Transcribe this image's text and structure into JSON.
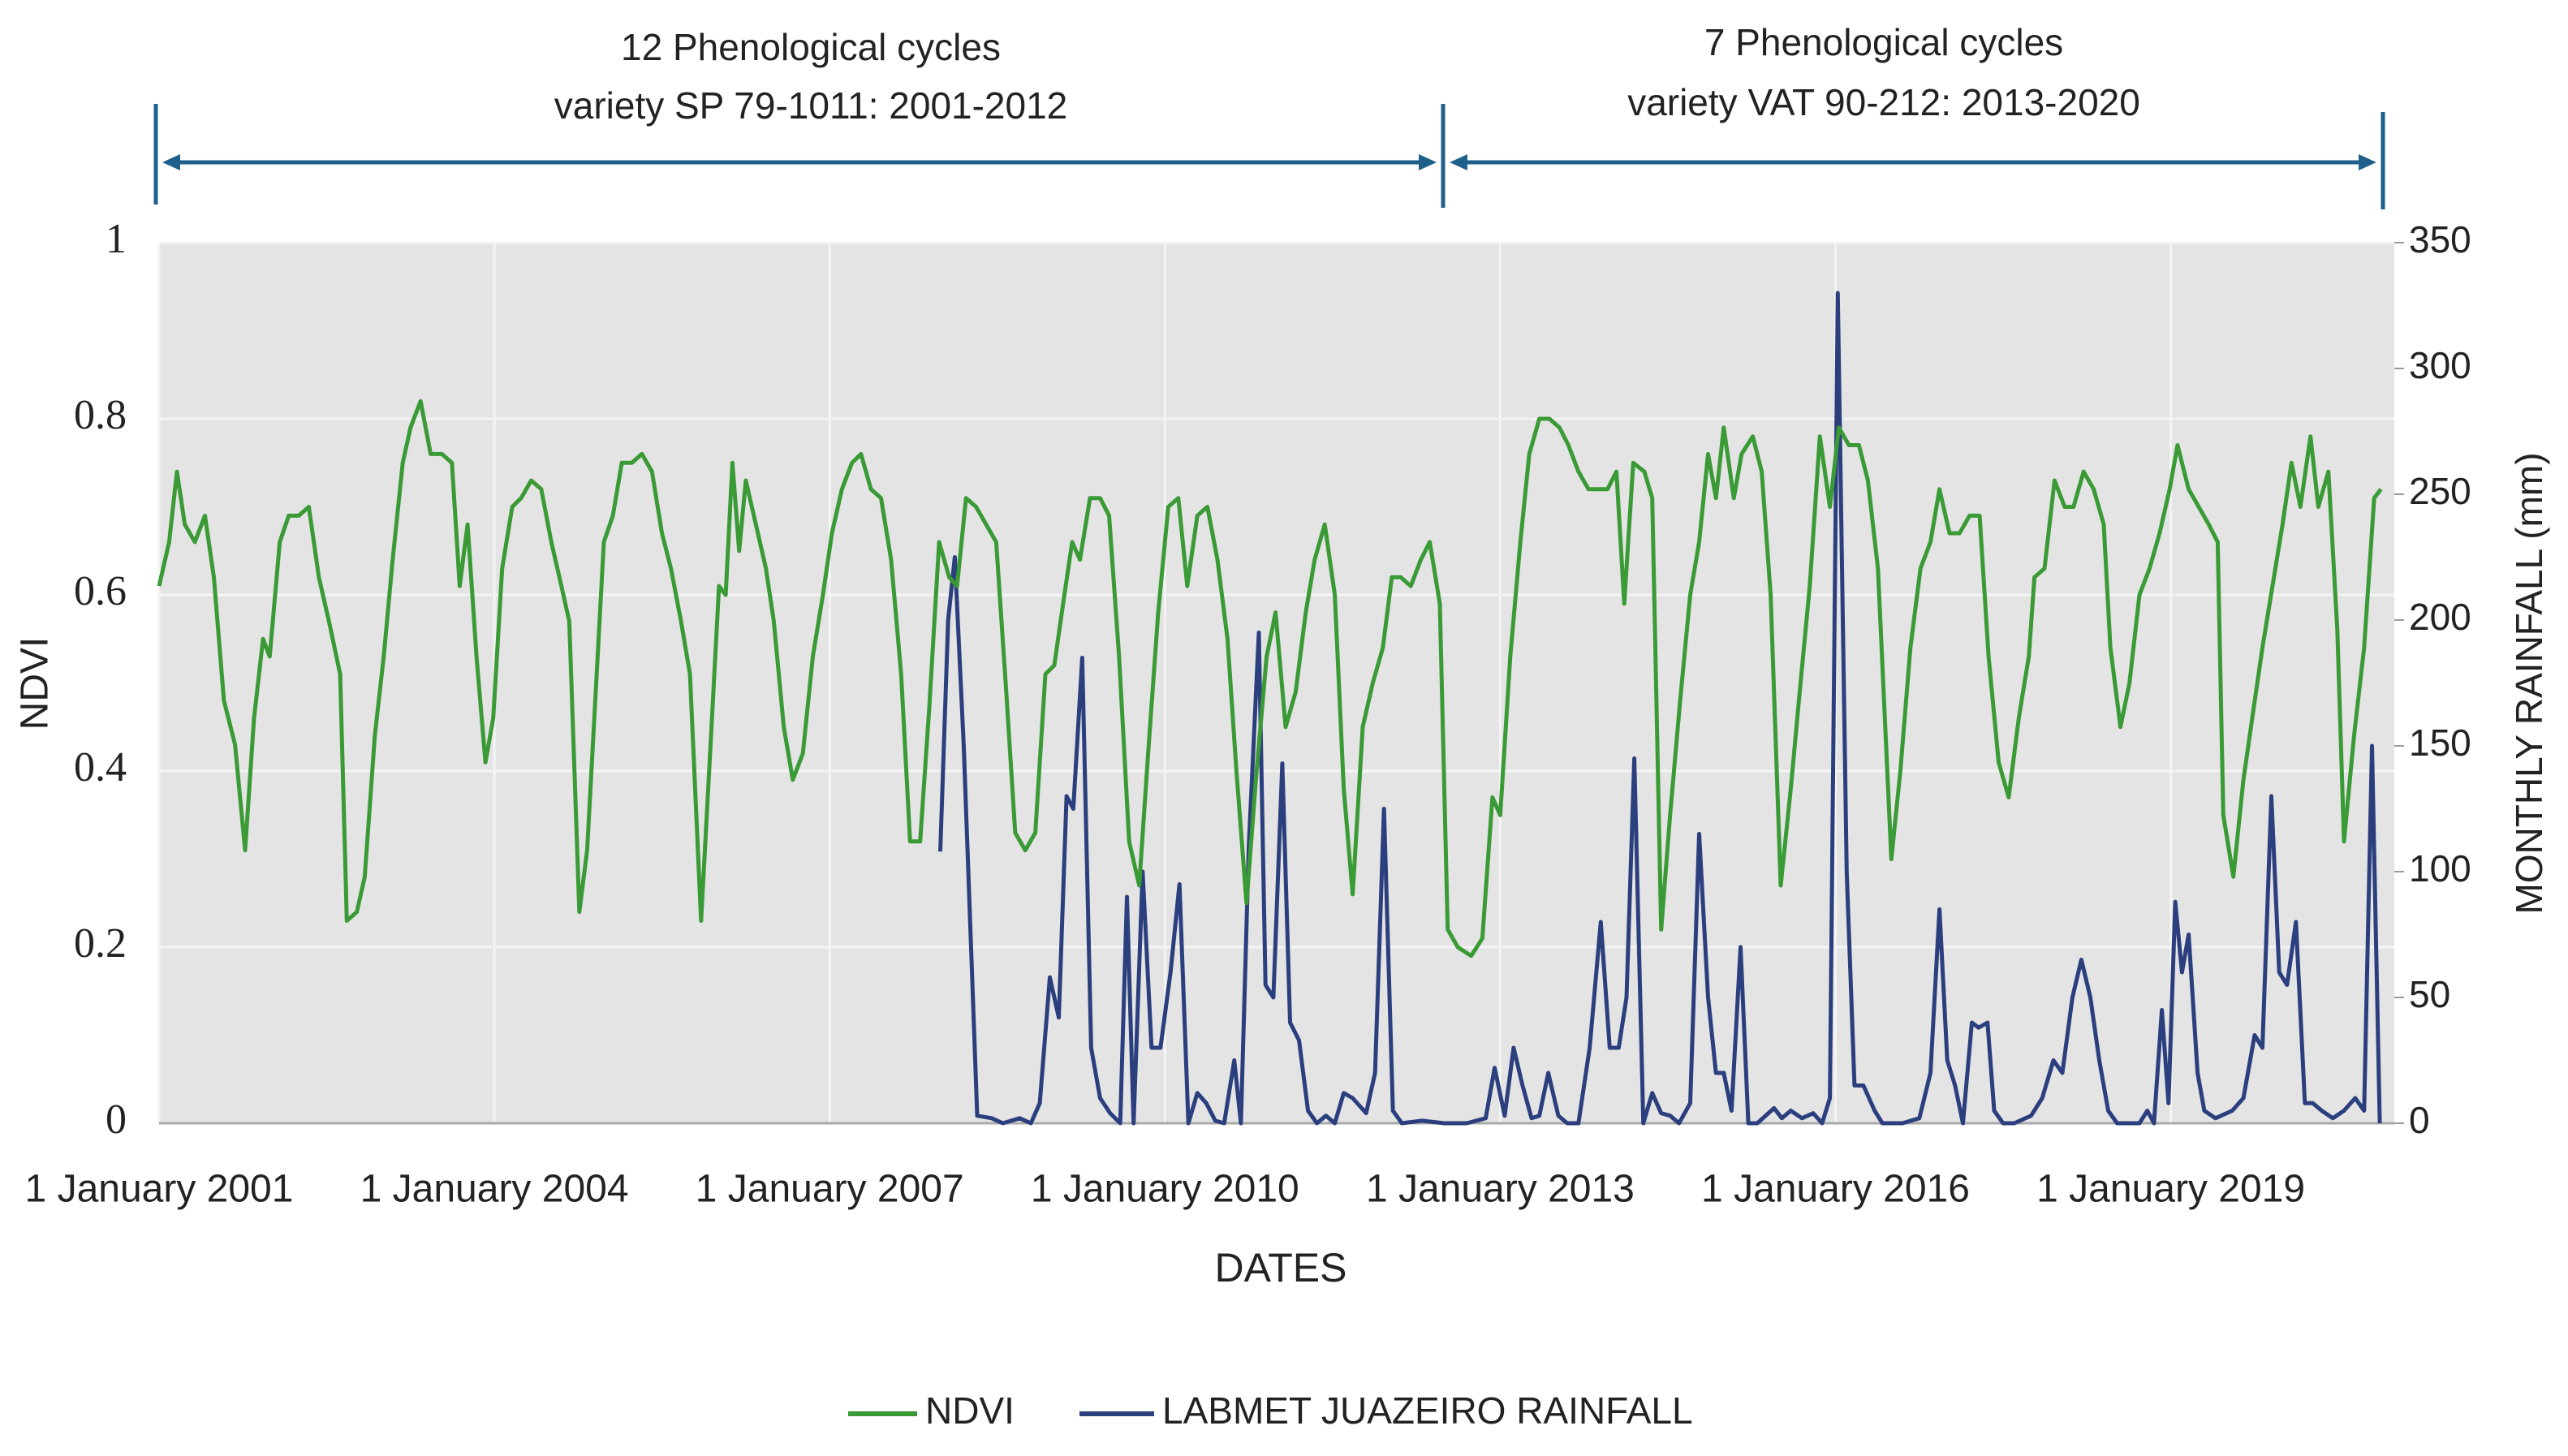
{
  "chart_data": {
    "type": "line",
    "annotations": [
      "12 Phenological cycles",
      "variety SP 79-1011: 2001-2012",
      "7 Phenological cycles",
      "variety VAT 90-212: 2013-2020"
    ],
    "xlabel": "DATES",
    "ylabel": "NDVI",
    "y2label": "MONTHLY RAINFALL (mm)",
    "xlim": [
      2001,
      2021
    ],
    "xticks": [
      {
        "value": 2001,
        "label": "1 January 2001"
      },
      {
        "value": 2004,
        "label": "1 January 2004"
      },
      {
        "value": 2007,
        "label": "1 January 2007"
      },
      {
        "value": 2010,
        "label": "1 January 2010"
      },
      {
        "value": 2013,
        "label": "1 January 2013"
      },
      {
        "value": 2016,
        "label": "1 January 2016"
      },
      {
        "value": 2019,
        "label": "1 January 2019"
      }
    ],
    "ylim": [
      0,
      1
    ],
    "yticks": [
      0,
      0.2,
      0.4,
      0.6,
      0.8,
      1
    ],
    "y2lim": [
      0,
      350
    ],
    "y2ticks": [
      0,
      50,
      100,
      150,
      200,
      250,
      300,
      350
    ],
    "grid": true,
    "legend": "bottom",
    "series": [
      {
        "name": "NDVI",
        "color": "#3a9a35",
        "x": [
          2001.0,
          2001.09,
          2001.16,
          2001.23,
          2001.32,
          2001.41,
          2001.49,
          2001.58,
          2001.68,
          2001.77,
          2001.85,
          2001.93,
          2001.99,
          2002.08,
          2002.16,
          2002.25,
          2002.34,
          2002.43,
          2002.52,
          2002.62,
          2002.68,
          2002.77,
          2002.84,
          2002.93,
          2003.01,
          2003.09,
          2003.18,
          2003.25,
          2003.34,
          2003.43,
          2003.53,
          2003.62,
          2003.69,
          2003.76,
          2003.84,
          2003.92,
          2003.99,
          2004.07,
          2004.16,
          2004.24,
          2004.33,
          2004.42,
          2004.51,
          2004.6,
          2004.67,
          2004.76,
          2004.83,
          2004.98,
          2005.06,
          2005.14,
          2005.23,
          2005.32,
          2005.41,
          2005.5,
          2005.58,
          2005.67,
          2005.75,
          2005.85,
          2005.93,
          2006.01,
          2006.07,
          2006.13,
          2006.19,
          2006.25,
          2006.34,
          2006.43,
          2006.5,
          2006.59,
          2006.67,
          2006.76,
          2006.85,
          2006.94,
          2007.02,
          2007.11,
          2007.2,
          2007.28,
          2007.37,
          2007.46,
          2007.55,
          2007.64,
          2007.72,
          2007.81,
          2007.89,
          2007.98,
          2008.07,
          2008.14,
          2008.22,
          2008.31,
          2008.4,
          2008.49,
          2008.58,
          2008.66,
          2008.75,
          2008.84,
          2008.93,
          2009.01,
          2009.1,
          2009.17,
          2009.24,
          2009.33,
          2009.42,
          2009.5,
          2009.59,
          2009.68,
          2009.77,
          2009.85,
          2009.94,
          2010.03,
          2010.12,
          2010.2,
          2010.29,
          2010.38,
          2010.47,
          2010.56,
          2010.64,
          2010.73,
          2010.82,
          2010.91,
          2010.99,
          2011.08,
          2011.17,
          2011.26,
          2011.34,
          2011.43,
          2011.52,
          2011.6,
          2011.68,
          2011.77,
          2011.86,
          2011.95,
          2012.03,
          2012.11,
          2012.2,
          2012.29,
          2012.37,
          2012.46,
          2012.53,
          2012.62,
          2012.74,
          2012.84,
          2012.93,
          2013.0,
          2013.09,
          2013.18,
          2013.26,
          2013.35,
          2013.44,
          2013.53,
          2013.61,
          2013.7,
          2013.79,
          2013.88,
          2013.96,
          2014.04,
          2014.11,
          2014.19,
          2014.29,
          2014.36,
          2014.44,
          2014.52,
          2014.61,
          2014.7,
          2014.78,
          2014.86,
          2014.93,
          2015.0,
          2015.09,
          2015.16,
          2015.26,
          2015.34,
          2015.42,
          2015.51,
          2015.6,
          2015.68,
          2015.77,
          2015.86,
          2015.95,
          2016.03,
          2016.12,
          2016.21,
          2016.29,
          2016.38,
          2016.5,
          2016.58,
          2016.67,
          2016.76,
          2016.85,
          2016.93,
          2017.02,
          2017.11,
          2017.2,
          2017.29,
          2017.37,
          2017.46,
          2017.55,
          2017.64,
          2017.73,
          2017.78,
          2017.87,
          2017.96,
          2018.05,
          2018.13,
          2018.22,
          2018.31,
          2018.4,
          2018.46,
          2018.55,
          2018.63,
          2018.72,
          2018.81,
          2018.9,
          2018.99,
          2019.06,
          2019.16,
          2019.25,
          2019.34,
          2019.42,
          2019.47,
          2019.56,
          2019.65,
          2019.74,
          2019.82,
          2019.91,
          2020.0,
          2020.08,
          2020.16,
          2020.25,
          2020.32,
          2020.41,
          2020.49,
          2020.55,
          2020.64,
          2020.73,
          2020.82,
          2020.88
        ],
        "values": [
          0.61,
          0.66,
          0.74,
          0.68,
          0.66,
          0.69,
          0.62,
          0.48,
          0.43,
          0.31,
          0.46,
          0.55,
          0.53,
          0.66,
          0.69,
          0.69,
          0.7,
          0.62,
          0.57,
          0.51,
          0.23,
          0.24,
          0.28,
          0.44,
          0.53,
          0.64,
          0.75,
          0.79,
          0.82,
          0.76,
          0.76,
          0.75,
          0.61,
          0.68,
          0.53,
          0.41,
          0.46,
          0.63,
          0.7,
          0.71,
          0.73,
          0.72,
          0.66,
          0.61,
          0.57,
          0.24,
          0.31,
          0.66,
          0.69,
          0.75,
          0.75,
          0.76,
          0.74,
          0.67,
          0.63,
          0.57,
          0.51,
          0.23,
          0.42,
          0.61,
          0.6,
          0.75,
          0.65,
          0.73,
          0.68,
          0.63,
          0.57,
          0.45,
          0.39,
          0.42,
          0.53,
          0.6,
          0.67,
          0.72,
          0.75,
          0.76,
          0.72,
          0.71,
          0.64,
          0.51,
          0.32,
          0.32,
          0.47,
          0.66,
          0.62,
          0.61,
          0.71,
          0.7,
          0.68,
          0.66,
          0.49,
          0.33,
          0.31,
          0.33,
          0.51,
          0.52,
          0.6,
          0.66,
          0.64,
          0.71,
          0.71,
          0.69,
          0.53,
          0.32,
          0.27,
          0.42,
          0.58,
          0.7,
          0.71,
          0.61,
          0.69,
          0.7,
          0.64,
          0.55,
          0.4,
          0.25,
          0.4,
          0.53,
          0.58,
          0.45,
          0.49,
          0.58,
          0.64,
          0.68,
          0.6,
          0.38,
          0.26,
          0.45,
          0.5,
          0.54,
          0.62,
          0.62,
          0.61,
          0.64,
          0.66,
          0.59,
          0.22,
          0.2,
          0.19,
          0.21,
          0.37,
          0.35,
          0.53,
          0.66,
          0.76,
          0.8,
          0.8,
          0.79,
          0.77,
          0.74,
          0.72,
          0.72,
          0.72,
          0.74,
          0.59,
          0.75,
          0.74,
          0.71,
          0.22,
          0.35,
          0.48,
          0.6,
          0.66,
          0.76,
          0.71,
          0.79,
          0.71,
          0.76,
          0.78,
          0.74,
          0.6,
          0.27,
          0.38,
          0.49,
          0.61,
          0.78,
          0.7,
          0.79,
          0.77,
          0.77,
          0.73,
          0.63,
          0.3,
          0.4,
          0.54,
          0.63,
          0.66,
          0.72,
          0.67,
          0.67,
          0.69,
          0.69,
          0.53,
          0.41,
          0.37,
          0.46,
          0.53,
          0.62,
          0.63,
          0.73,
          0.7,
          0.7,
          0.74,
          0.72,
          0.68,
          0.54,
          0.45,
          0.5,
          0.6,
          0.63,
          0.67,
          0.72,
          0.77,
          0.72,
          0.7,
          0.68,
          0.66,
          0.35,
          0.28,
          0.39,
          0.47,
          0.54,
          0.61,
          0.68,
          0.75,
          0.7,
          0.78,
          0.7,
          0.74,
          0.56,
          0.32,
          0.44,
          0.54,
          0.71,
          0.72
        ]
      },
      {
        "name": "LABMET JUAZEIRO RAINFALL",
        "color": "#2b3f7e",
        "axis": "y2",
        "x": [
          2007.99,
          2008.06,
          2008.12,
          2008.2,
          2008.32,
          2008.45,
          2008.55,
          2008.7,
          2008.8,
          2008.88,
          2008.97,
          2009.05,
          2009.12,
          2009.18,
          2009.26,
          2009.34,
          2009.42,
          2009.51,
          2009.6,
          2009.66,
          2009.72,
          2009.8,
          2009.88,
          2009.96,
          2010.05,
          2010.13,
          2010.21,
          2010.29,
          2010.37,
          2010.45,
          2010.53,
          2010.62,
          2010.68,
          2010.75,
          2010.84,
          2010.9,
          2010.97,
          2011.05,
          2011.12,
          2011.2,
          2011.28,
          2011.36,
          2011.44,
          2011.52,
          2011.6,
          2011.68,
          2011.8,
          2011.88,
          2011.96,
          2012.04,
          2012.12,
          2012.3,
          2012.5,
          2012.7,
          2012.87,
          2012.95,
          2013.04,
          2013.12,
          2013.2,
          2013.28,
          2013.35,
          2013.43,
          2013.52,
          2013.6,
          2013.7,
          2013.8,
          2013.9,
          2013.98,
          2014.06,
          2014.13,
          2014.2,
          2014.28,
          2014.36,
          2014.44,
          2014.52,
          2014.6,
          2014.7,
          2014.78,
          2014.86,
          2014.93,
          2015.0,
          2015.07,
          2015.15,
          2015.22,
          2015.3,
          2015.45,
          2015.52,
          2015.6,
          2015.7,
          2015.8,
          2015.88,
          2015.95,
          2016.02,
          2016.1,
          2016.17,
          2016.25,
          2016.35,
          2016.42,
          2016.6,
          2016.75,
          2016.85,
          2016.93,
          2017.0,
          2017.07,
          2017.14,
          2017.22,
          2017.28,
          2017.36,
          2017.42,
          2017.5,
          2017.6,
          2017.75,
          2017.85,
          2017.95,
          2018.03,
          2018.12,
          2018.2,
          2018.28,
          2018.36,
          2018.44,
          2018.52,
          2018.62,
          2018.72,
          2018.79,
          2018.85,
          2018.92,
          2018.98,
          2019.04,
          2019.1,
          2019.16,
          2019.24,
          2019.3,
          2019.4,
          2019.55,
          2019.65,
          2019.75,
          2019.82,
          2019.9,
          2019.97,
          2020.04,
          2020.12,
          2020.2,
          2020.27,
          2020.35,
          2020.45,
          2020.55,
          2020.65,
          2020.73,
          2020.8,
          2020.87
        ],
        "values": [
          108,
          200,
          225,
          150,
          3,
          2,
          0,
          2,
          0,
          8,
          58,
          42,
          130,
          125,
          185,
          30,
          10,
          4,
          0,
          90,
          0,
          100,
          30,
          30,
          60,
          95,
          0,
          12,
          8,
          1,
          0,
          25,
          0,
          110,
          195,
          55,
          50,
          143,
          40,
          33,
          5,
          0,
          3,
          0,
          12,
          10,
          4,
          20,
          125,
          5,
          0,
          1,
          0,
          0,
          2,
          22,
          3,
          30,
          15,
          2,
          3,
          20,
          3,
          0,
          0,
          30,
          80,
          30,
          30,
          50,
          145,
          0,
          12,
          4,
          3,
          0,
          8,
          115,
          50,
          20,
          20,
          5,
          70,
          0,
          0,
          6,
          2,
          5,
          2,
          4,
          0,
          10,
          330,
          100,
          15,
          15,
          5,
          0,
          0,
          2,
          20,
          85,
          25,
          15,
          0,
          40,
          38,
          40,
          5,
          0,
          0,
          3,
          10,
          25,
          20,
          50,
          65,
          50,
          25,
          5,
          0,
          0,
          0,
          5,
          0,
          45,
          8,
          88,
          60,
          75,
          20,
          5,
          2,
          5,
          10,
          35,
          30,
          130,
          60,
          55,
          80,
          8,
          8,
          5,
          2,
          5,
          10,
          5,
          150,
          0
        ]
      }
    ]
  }
}
